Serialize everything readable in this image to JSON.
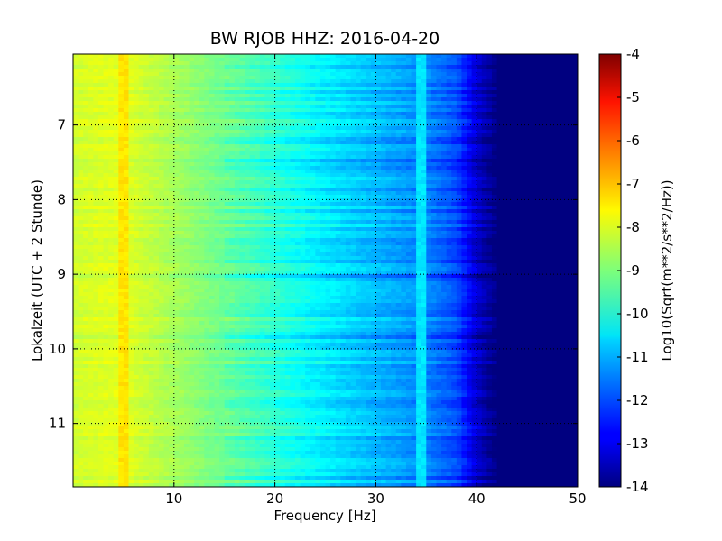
{
  "chart_data": {
    "type": "heatmap",
    "title": "BW RJOB HHZ: 2016-04-20",
    "xlabel": "Frequency [Hz]",
    "ylabel": "Lokalzeit (UTC + 2 Stunde)",
    "xlim": [
      0,
      50
    ],
    "ylim": [
      11.85,
      6.05
    ],
    "x_ticks": [
      "10",
      "20",
      "30",
      "40",
      "50"
    ],
    "y_ticks": [
      "7",
      "8",
      "9",
      "10",
      "11"
    ],
    "grid": true,
    "colorbar": {
      "label": "Log10(Sqrt(m**2/s**2/Hz))",
      "range": [
        -14,
        -4
      ],
      "ticks": [
        "-4",
        "-5",
        "-6",
        "-7",
        "-8",
        "-9",
        "-10",
        "-11",
        "-12",
        "-13",
        "-14"
      ],
      "colormap": "jet"
    },
    "profile": {
      "description_points_freq_hz": [
        0,
        2,
        5,
        10,
        15,
        20,
        25,
        30,
        35,
        38,
        40,
        42,
        50
      ],
      "log10_amplitude": [
        -8.2,
        -8.1,
        -8.0,
        -8.6,
        -9.2,
        -9.8,
        -10.4,
        -10.9,
        -11.4,
        -12.0,
        -13.2,
        -14.0,
        -14.0
      ]
    },
    "features": [
      {
        "label": "narrow spectral line",
        "freq_hz": 5,
        "log10_amplitude": -7.5
      },
      {
        "label": "intermittent line",
        "freq_hz": 34.5,
        "log10_amplitude": -10.5
      }
    ]
  }
}
